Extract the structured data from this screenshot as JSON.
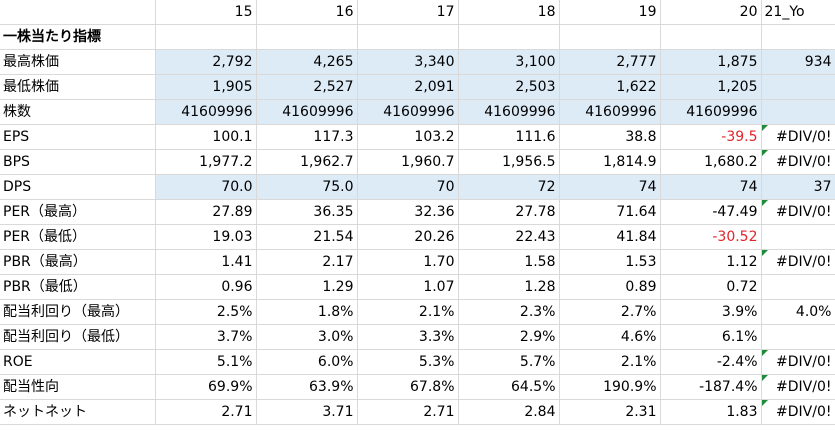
{
  "header": [
    "",
    "15",
    "16",
    "17",
    "18",
    "19",
    "20",
    "21_Yo"
  ],
  "rows": [
    {
      "label": "一株当たり指標",
      "bold": true,
      "cells": [
        "",
        "",
        "",
        "",
        "",
        "",
        ""
      ]
    },
    {
      "label": "最高株価",
      "cells": [
        "2,792",
        "4,265",
        "3,340",
        "3,100",
        "2,777",
        "1,875",
        "934"
      ],
      "blue": [
        0,
        1,
        2,
        3,
        4,
        5,
        6
      ]
    },
    {
      "label": "最低株価",
      "cells": [
        "1,905",
        "2,527",
        "2,091",
        "2,503",
        "1,622",
        "1,205",
        ""
      ],
      "blue": [
        0,
        1,
        2,
        3,
        4,
        5,
        6
      ]
    },
    {
      "label": "株数",
      "cells": [
        "41609996",
        "41609996",
        "41609996",
        "41609996",
        "41609996",
        "41609996",
        ""
      ],
      "blue": [
        0,
        1,
        2,
        3,
        4,
        5,
        6
      ]
    },
    {
      "label": "EPS",
      "cells": [
        "100.1",
        "117.3",
        "103.2",
        "111.6",
        "38.8",
        "-39.5",
        "#DIV/0!"
      ],
      "red": [
        5
      ],
      "flag": [
        6
      ]
    },
    {
      "label": "BPS",
      "cells": [
        "1,977.2",
        "1,962.7",
        "1,960.7",
        "1,956.5",
        "1,814.9",
        "1,680.2",
        "#DIV/0!"
      ],
      "flag": [
        6
      ]
    },
    {
      "label": "DPS",
      "cells": [
        "70.0",
        "75.0",
        "70",
        "72",
        "74",
        "74",
        "37"
      ],
      "blue": [
        0,
        1,
        2,
        3,
        4,
        5,
        6
      ]
    },
    {
      "label": "PER（最高）",
      "cells": [
        "27.89",
        "36.35",
        "32.36",
        "27.78",
        "71.64",
        "-47.49",
        "#DIV/0!"
      ],
      "flag": [
        6
      ]
    },
    {
      "label": "PER（最低）",
      "cells": [
        "19.03",
        "21.54",
        "20.26",
        "22.43",
        "41.84",
        "-30.52",
        ""
      ],
      "red": [
        5
      ]
    },
    {
      "label": "PBR（最高）",
      "cells": [
        "1.41",
        "2.17",
        "1.70",
        "1.58",
        "1.53",
        "1.12",
        "#DIV/0!"
      ],
      "flag": [
        6
      ]
    },
    {
      "label": "PBR（最低）",
      "cells": [
        "0.96",
        "1.29",
        "1.07",
        "1.28",
        "0.89",
        "0.72",
        ""
      ]
    },
    {
      "label": "配当利回り（最高）",
      "cells": [
        "2.5%",
        "1.8%",
        "2.1%",
        "2.3%",
        "2.7%",
        "3.9%",
        "4.0%"
      ]
    },
    {
      "label": "配当利回り（最低）",
      "cells": [
        "3.7%",
        "3.0%",
        "3.3%",
        "2.9%",
        "4.6%",
        "6.1%",
        ""
      ]
    },
    {
      "label": "ROE",
      "cells": [
        "5.1%",
        "6.0%",
        "5.3%",
        "5.7%",
        "2.1%",
        "-2.4%",
        "#DIV/0!"
      ],
      "flag": [
        6
      ]
    },
    {
      "label": "配当性向",
      "cells": [
        "69.9%",
        "63.9%",
        "67.8%",
        "64.5%",
        "190.9%",
        "-187.4%",
        "#DIV/0!"
      ],
      "flag": [
        6
      ]
    },
    {
      "label": "ネットネット",
      "cells": [
        "2.71",
        "3.71",
        "2.71",
        "2.84",
        "2.31",
        "1.83",
        "#DIV/0!"
      ],
      "flag": [
        6
      ]
    }
  ],
  "colors": {
    "highlight": "#ddebf7",
    "negative": "#e0242b",
    "error_flag": "#1e8c3a",
    "gridline": "#d9d9d9"
  }
}
